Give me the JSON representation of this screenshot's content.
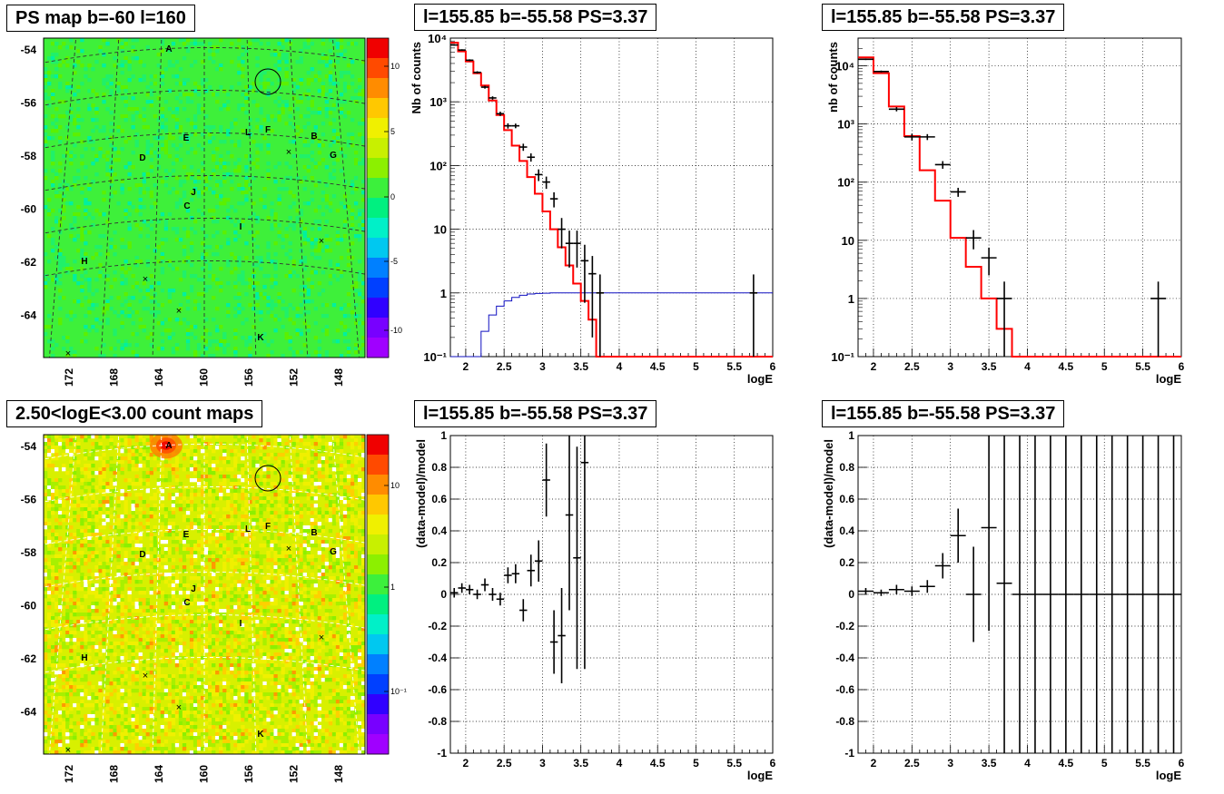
{
  "titles": {
    "map1": "PS map b=-60 l=160",
    "map2": "2.50<logE<3.00 count maps",
    "spec1": "l=155.85 b=-55.58 PS=3.37",
    "spec2": "l=155.85 b=-55.58 PS=3.37",
    "res1": "l=155.85 b=-55.58 PS=3.37",
    "res2": "l=155.85 b=-55.58 PS=3.37"
  },
  "maps": {
    "lat_ticks": [
      "-54",
      "-56",
      "-58",
      "-60",
      "-62",
      "-64"
    ],
    "lon_ticks": [
      "172",
      "168",
      "164",
      "160",
      "156",
      "152",
      "148"
    ],
    "map1_colorbar": [
      "10",
      "5",
      "0",
      "-5",
      "-10"
    ],
    "map2_colorbar": [
      "10",
      "1",
      "10⁻¹"
    ],
    "source_labels": [
      "A",
      "B",
      "C",
      "D",
      "E",
      "F",
      "G",
      "H",
      "I",
      "J",
      "K",
      "L"
    ],
    "palette": [
      "#f00000",
      "#ff4a00",
      "#ff8c00",
      "#ffc800",
      "#f0f000",
      "#c8f000",
      "#8cf000",
      "#3cf03c",
      "#00f080",
      "#00f0c8",
      "#00c8f0",
      "#0080ff",
      "#0040ff",
      "#3000ff",
      "#7800ff",
      "#a000ff"
    ]
  },
  "chart_data": [
    {
      "type": "line",
      "panel": "spec1",
      "xlabel": "logE",
      "ylabel": "Nb of counts",
      "xlim": [
        1.8,
        6
      ],
      "ylim": [
        0.1,
        10000
      ],
      "yscale": "log",
      "grid": true,
      "x_ticks": [
        2,
        2.5,
        3,
        3.5,
        4,
        4.5,
        5,
        5.5,
        6
      ],
      "y_tick_labels": [
        "10⁻¹",
        "1",
        "10",
        "10²",
        "10³",
        "10⁴"
      ],
      "model_bin_width": 0.1,
      "model_red": [
        8500,
        6200,
        4300,
        2800,
        1800,
        1050,
        620,
        360,
        205,
        118,
        66,
        36,
        19,
        10,
        5.2,
        2.7,
        1.4,
        0.75,
        0.38,
        0.1,
        0.1,
        0.1,
        0.1,
        0.1,
        0.1,
        0.1,
        0.1,
        0.1,
        0.1,
        0.1,
        0.1,
        0.1,
        0.1,
        0.1,
        0.1,
        0.1,
        0.1,
        0.1,
        0.1,
        0.1,
        0.1,
        0.1
      ],
      "model_blue": [
        0.1,
        0.1,
        0.1,
        0.1,
        0.25,
        0.45,
        0.62,
        0.75,
        0.85,
        0.92,
        0.96,
        0.98,
        0.99,
        1,
        1,
        1,
        1,
        1,
        1,
        1,
        1,
        1,
        1,
        1,
        1,
        1,
        1,
        1,
        1,
        1,
        1,
        1,
        1,
        1,
        1,
        1,
        1,
        1,
        1,
        1,
        1,
        1
      ],
      "data_points": [
        [
          1.85,
          7800,
          0.05,
          200
        ],
        [
          1.95,
          6500,
          0.05,
          180
        ],
        [
          2.05,
          4500,
          0.05,
          150
        ],
        [
          2.15,
          2900,
          0.05,
          120
        ],
        [
          2.25,
          1700,
          0.05,
          90
        ],
        [
          2.35,
          1150,
          0.05,
          70
        ],
        [
          2.45,
          650,
          0.05,
          50
        ],
        [
          2.55,
          420,
          0.05,
          40
        ],
        [
          2.65,
          420,
          0.05,
          35
        ],
        [
          2.75,
          195,
          0.05,
          25
        ],
        [
          2.85,
          135,
          0.05,
          20
        ],
        [
          2.95,
          72,
          0.05,
          15
        ],
        [
          3.05,
          55,
          0.05,
          12
        ],
        [
          3.15,
          30,
          0.05,
          8
        ],
        [
          3.25,
          10,
          0.05,
          5
        ],
        [
          3.35,
          6,
          0.05,
          3.5
        ],
        [
          3.45,
          6,
          0.05,
          3.5
        ],
        [
          3.55,
          3.2,
          0.05,
          2.5
        ],
        [
          3.65,
          2,
          0.05,
          1.8
        ],
        [
          3.75,
          1,
          0.05,
          0.95
        ],
        [
          5.75,
          1,
          0.05,
          0.95
        ]
      ]
    },
    {
      "type": "line",
      "panel": "spec2",
      "xlabel": "logE",
      "ylabel": "nb of counts",
      "xlim": [
        1.8,
        6
      ],
      "ylim": [
        0.1,
        30000
      ],
      "yscale": "log",
      "grid": true,
      "x_ticks": [
        2,
        2.5,
        3,
        3.5,
        4,
        4.5,
        5,
        5.5,
        6
      ],
      "y_tick_labels": [
        "10⁻¹",
        "1",
        "10",
        "10²",
        "10³",
        "10⁴"
      ],
      "model_bin_width": 0.2,
      "model_red": [
        14000,
        7500,
        2000,
        620,
        160,
        48,
        11,
        3.5,
        1,
        0.3,
        0.1,
        0.1,
        0.1,
        0.1,
        0.1,
        0.1,
        0.1,
        0.1,
        0.1,
        0.1,
        0.1
      ],
      "data_points": [
        [
          1.9,
          13000,
          0.1,
          400
        ],
        [
          2.1,
          8000,
          0.1,
          300
        ],
        [
          2.3,
          1800,
          0.1,
          150
        ],
        [
          2.5,
          600,
          0.1,
          80
        ],
        [
          2.7,
          600,
          0.1,
          70
        ],
        [
          2.9,
          200,
          0.1,
          30
        ],
        [
          3.1,
          68,
          0.1,
          12
        ],
        [
          3.3,
          11,
          0.1,
          4
        ],
        [
          3.5,
          5,
          0.1,
          2.5
        ],
        [
          3.7,
          1,
          0.1,
          0.95
        ],
        [
          5.7,
          1,
          0.1,
          0.95
        ]
      ]
    },
    {
      "type": "scatter",
      "panel": "res1",
      "xlabel": "logE",
      "ylabel": "(data-model)/model",
      "xlim": [
        1.8,
        6
      ],
      "ylim": [
        -1,
        1
      ],
      "grid": true,
      "x_ticks": [
        2,
        2.5,
        3,
        3.5,
        4,
        4.5,
        5,
        5.5,
        6
      ],
      "y_ticks": [
        -1,
        -0.8,
        -0.6,
        -0.4,
        -0.2,
        0,
        0.2,
        0.4,
        0.6,
        0.8,
        1
      ],
      "points": [
        [
          1.85,
          0.01,
          0.03
        ],
        [
          1.95,
          0.04,
          0.03
        ],
        [
          2.05,
          0.03,
          0.03
        ],
        [
          2.15,
          0.0,
          0.03
        ],
        [
          2.25,
          0.06,
          0.04
        ],
        [
          2.35,
          0.0,
          0.04
        ],
        [
          2.45,
          -0.03,
          0.04
        ],
        [
          2.55,
          0.12,
          0.05
        ],
        [
          2.65,
          0.13,
          0.06
        ],
        [
          2.75,
          -0.1,
          0.07
        ],
        [
          2.85,
          0.15,
          0.1
        ],
        [
          2.95,
          0.21,
          0.13
        ],
        [
          3.05,
          0.72,
          0.23
        ],
        [
          3.15,
          -0.3,
          0.2
        ],
        [
          3.25,
          -0.26,
          0.3
        ],
        [
          3.35,
          0.5,
          0.6
        ],
        [
          3.45,
          0.23,
          0.7
        ],
        [
          3.55,
          0.83,
          1.3
        ]
      ]
    },
    {
      "type": "scatter",
      "panel": "res2",
      "xlabel": "logE",
      "ylabel": "(data-model)/model",
      "xlim": [
        1.8,
        6
      ],
      "ylim": [
        -1,
        1
      ],
      "grid": true,
      "x_ticks": [
        2,
        2.5,
        3,
        3.5,
        4,
        4.5,
        5,
        5.5,
        6
      ],
      "y_ticks": [
        -1,
        -0.8,
        -0.6,
        -0.4,
        -0.2,
        0,
        0.2,
        0.4,
        0.6,
        0.8,
        1
      ],
      "points": [
        [
          1.9,
          0.02,
          0.02
        ],
        [
          2.1,
          0.01,
          0.02
        ],
        [
          2.3,
          0.03,
          0.03
        ],
        [
          2.5,
          0.02,
          0.03
        ],
        [
          2.7,
          0.05,
          0.04
        ],
        [
          2.9,
          0.18,
          0.08
        ],
        [
          3.1,
          0.37,
          0.17
        ],
        [
          3.3,
          0.0,
          0.3
        ],
        [
          3.5,
          0.42,
          0.65
        ],
        [
          3.7,
          0.07,
          2
        ],
        [
          3.9,
          0,
          2
        ],
        [
          4.1,
          0,
          2
        ],
        [
          4.3,
          0,
          2
        ],
        [
          4.5,
          0,
          2
        ],
        [
          4.7,
          0,
          2
        ],
        [
          4.9,
          0,
          2
        ],
        [
          5.1,
          0,
          2
        ],
        [
          5.3,
          0,
          2
        ],
        [
          5.5,
          0,
          2
        ],
        [
          5.7,
          0,
          2
        ],
        [
          5.9,
          0,
          2
        ]
      ]
    }
  ]
}
